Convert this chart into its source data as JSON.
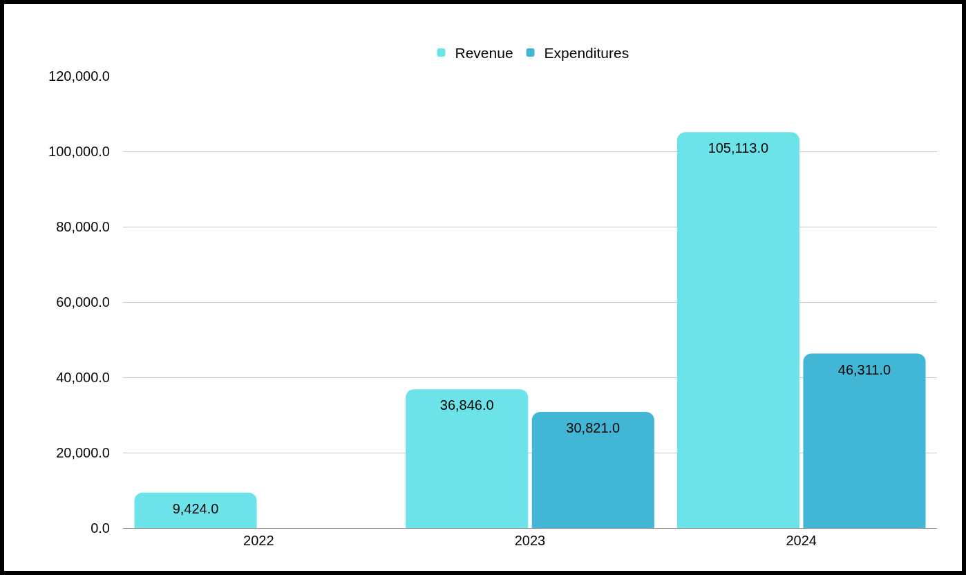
{
  "chart_data": {
    "type": "bar",
    "categories": [
      "2022",
      "2023",
      "2024"
    ],
    "series": [
      {
        "name": "Revenue",
        "color": "#6ce3e8",
        "values": [
          9424,
          36846,
          105113
        ],
        "value_labels": [
          "9,424.0",
          "36,846.0",
          "105,113.0"
        ]
      },
      {
        "name": "Expenditures",
        "color": "#42b6d5",
        "values": [
          null,
          30821,
          46311
        ],
        "value_labels": [
          null,
          "30,821.0",
          "46,311.0"
        ]
      }
    ],
    "ylim": [
      0,
      120000
    ],
    "yticks": [
      {
        "value": 0,
        "label": "0.0"
      },
      {
        "value": 20000,
        "label": "20,000.0"
      },
      {
        "value": 40000,
        "label": "40,000.0"
      },
      {
        "value": 60000,
        "label": "60,000.0"
      },
      {
        "value": 80000,
        "label": "80,000.0"
      },
      {
        "value": 100000,
        "label": "100,000.0"
      },
      {
        "value": 120000,
        "label": "120,000.0"
      }
    ],
    "grid": "y",
    "legend": "top"
  }
}
